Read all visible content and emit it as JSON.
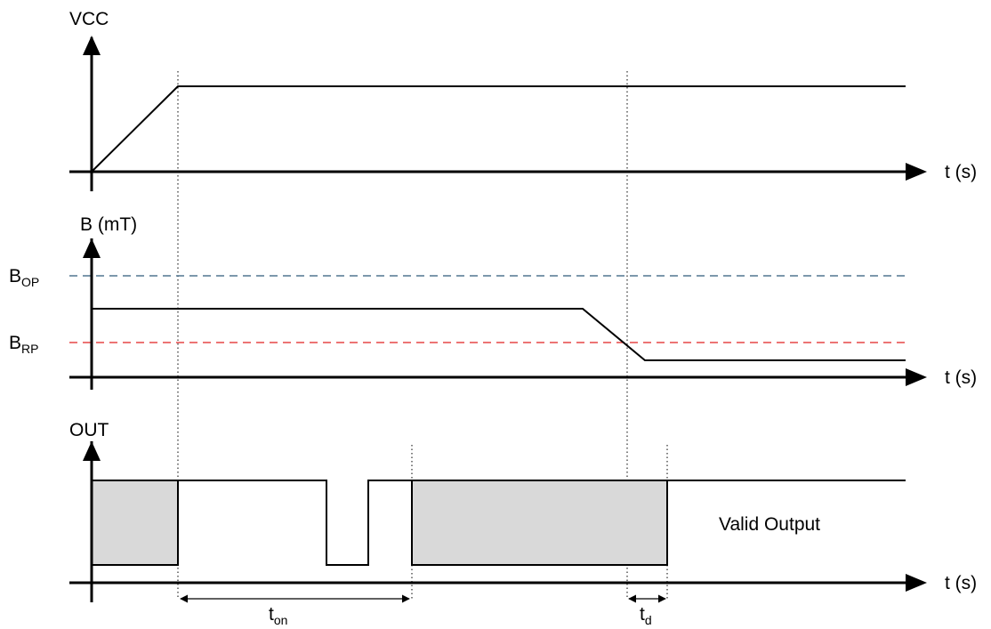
{
  "panels": {
    "vcc": {
      "axis_label": "VCC",
      "time_label": "t (s)"
    },
    "field": {
      "axis_label": "B (mT)",
      "time_label": "t (s)",
      "bop": {
        "main": "B",
        "sub": "OP",
        "color": "#2f5a7a"
      },
      "brp": {
        "main": "B",
        "sub": "RP",
        "color": "#e02020"
      }
    },
    "out": {
      "axis_label": "OUT",
      "time_label": "t (s)",
      "valid_label": "Valid Output"
    }
  },
  "annotations": {
    "ton": {
      "main": "t",
      "sub": "on"
    },
    "td": {
      "main": "t",
      "sub": "d"
    }
  },
  "colors": {
    "line": "#000000",
    "shade": "#d9d9d9",
    "guide": "#000000"
  }
}
